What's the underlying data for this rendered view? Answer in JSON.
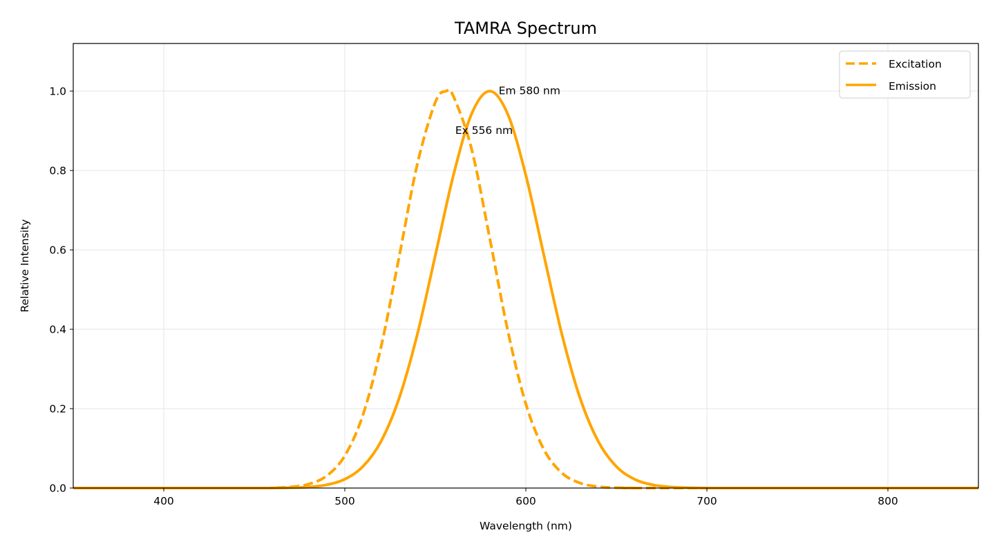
{
  "chart_data": {
    "type": "line",
    "title": "TAMRA Spectrum",
    "xlabel": "Wavelength (nm)",
    "ylabel": "Relative Intensity",
    "xlim": [
      350,
      850
    ],
    "ylim": [
      0,
      1.12
    ],
    "xticks": [
      400,
      500,
      600,
      700,
      800
    ],
    "yticks": [
      "0.0",
      "0.2",
      "0.4",
      "0.6",
      "0.8",
      "1.0"
    ],
    "grid": true,
    "legend_position": "top-right",
    "series": [
      {
        "name": "Excitation",
        "style": "dashed",
        "color": "#FFA500",
        "x": [
          350,
          450,
          460,
          470,
          480,
          490,
          500,
          510,
          520,
          530,
          540,
          550,
          556,
          560,
          570,
          580,
          590,
          600,
          610,
          620,
          630,
          640,
          650,
          660,
          670,
          850
        ],
        "y": [
          0,
          0,
          0.0006,
          0.0027,
          0.0098,
          0.0307,
          0.0814,
          0.184,
          0.355,
          0.582,
          0.815,
          0.972,
          1.0,
          0.987,
          0.855,
          0.631,
          0.397,
          0.212,
          0.097,
          0.0377,
          0.0125,
          0.0035,
          0.0009,
          0.0002,
          0,
          0
        ]
      },
      {
        "name": "Emission",
        "style": "solid",
        "color": "#FFA500",
        "x": [
          350,
          450,
          460,
          470,
          480,
          490,
          500,
          510,
          520,
          530,
          540,
          550,
          560,
          570,
          580,
          590,
          600,
          610,
          620,
          630,
          640,
          650,
          660,
          670,
          680,
          690,
          700,
          710,
          850
        ],
        "y": [
          0,
          0,
          0.0002,
          0.0008,
          0.0026,
          0.0081,
          0.0223,
          0.0543,
          0.1176,
          0.2262,
          0.386,
          0.586,
          0.788,
          0.942,
          1.0,
          0.942,
          0.788,
          0.586,
          0.386,
          0.2262,
          0.1176,
          0.0543,
          0.0223,
          0.0081,
          0.0026,
          0.0008,
          0.0002,
          0,
          0
        ]
      }
    ],
    "annotations": [
      {
        "text": "Em 580 nm",
        "x": 585,
        "y": 1.0
      },
      {
        "text": "Ex 556 nm",
        "x": 561,
        "y": 0.9
      }
    ]
  }
}
